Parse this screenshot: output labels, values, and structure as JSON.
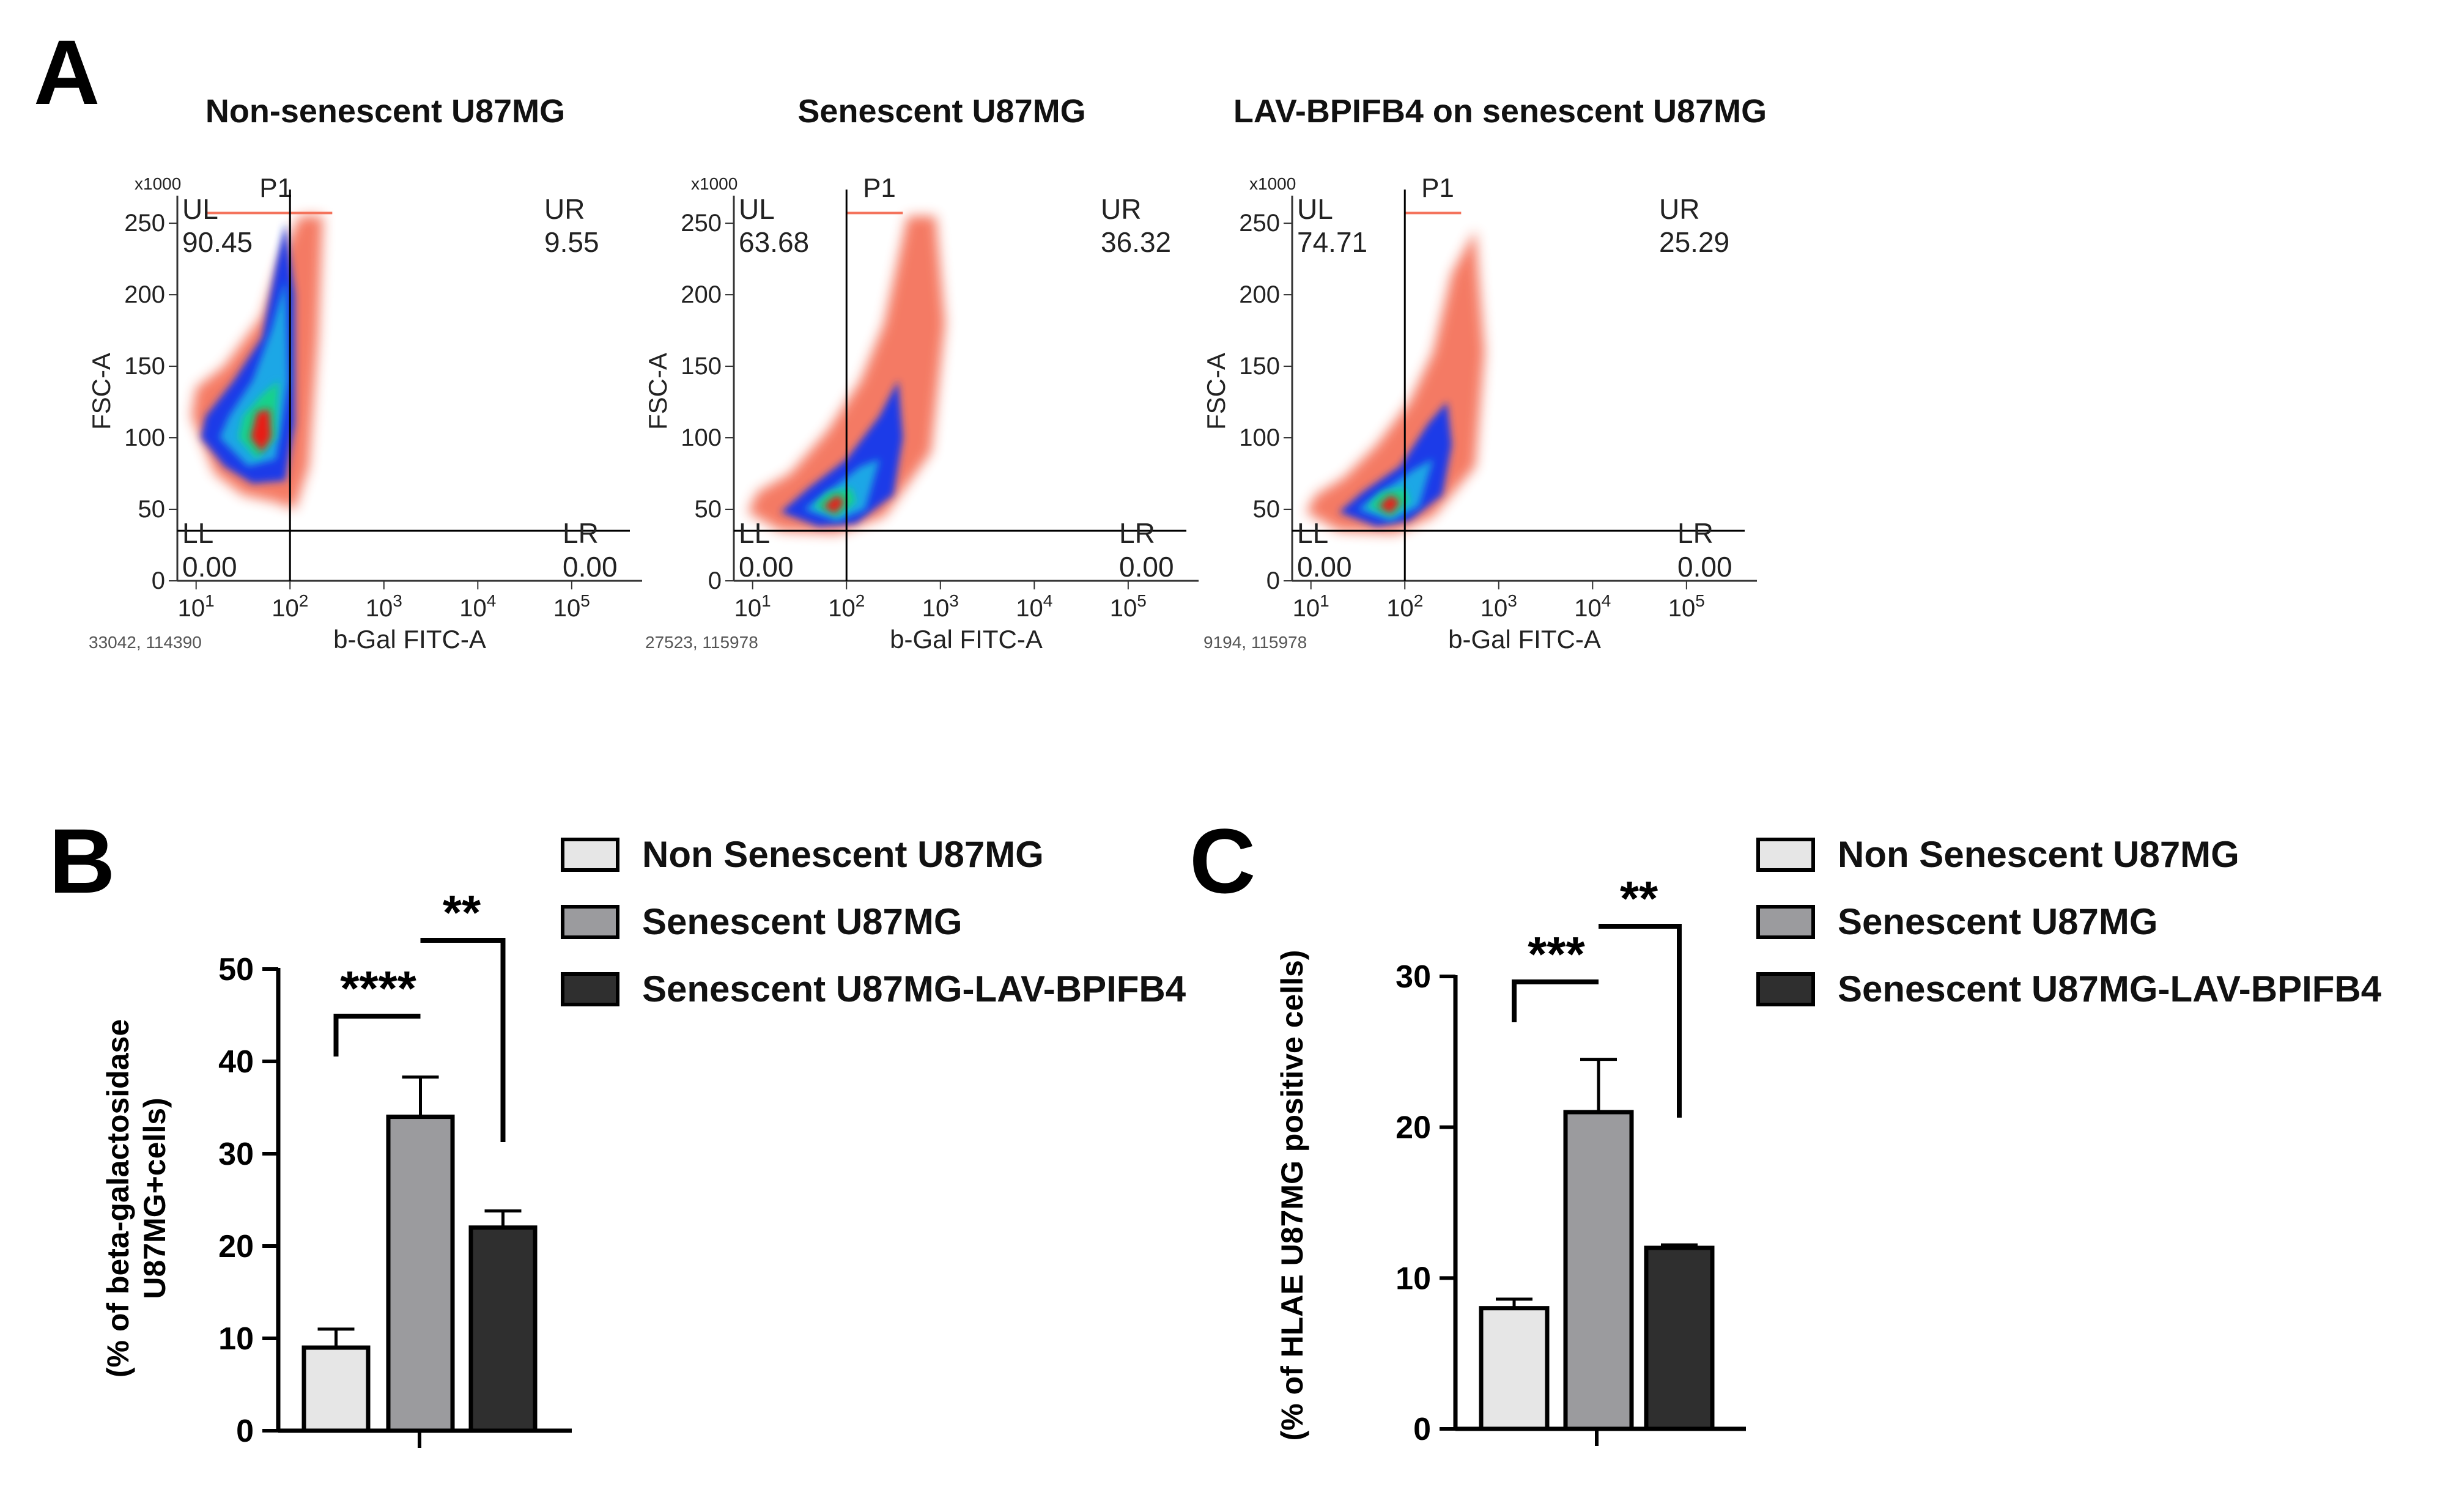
{
  "panel_letters": {
    "a": "A",
    "b": "B",
    "c": "C"
  },
  "colors": {
    "non_senescent": "#e6e6e6",
    "senescent": "#9b9b9e",
    "lav_bpifb4": "#2f2f2f",
    "density_low": "#f4735c",
    "density_mid1": "#1f3ae8",
    "density_mid2": "#1aa7e6",
    "density_mid3": "#13d28a",
    "density_high": "#e81e16"
  },
  "flow": {
    "y_multiplier": "x1000",
    "y_ticks": [
      "0",
      "50",
      "100",
      "150",
      "200",
      "250"
    ],
    "x_ticks": [
      "10",
      "10",
      "10",
      "10",
      "10"
    ],
    "x_exponents": [
      "1",
      "2",
      "3",
      "4",
      "5"
    ],
    "x_label": "b-Gal FITC-A",
    "y_label": "FSC-A",
    "gate_label": "P1",
    "quadrant_labels": {
      "ul": "UL",
      "ur": "UR",
      "ll": "LL",
      "lr": "LR"
    },
    "plots": [
      {
        "title": "Non-senescent U87MG",
        "ul": "90.45",
        "ur": "9.55",
        "ll": "0.00",
        "lr": "0.00",
        "footer": "33042, 114390"
      },
      {
        "title": "Senescent U87MG",
        "ul": "63.68",
        "ur": "36.32",
        "ll": "0.00",
        "lr": "0.00",
        "footer": "27523, 115978"
      },
      {
        "title": "LAV-BPIFB4 on senescent U87MG",
        "ul": "74.71",
        "ur": "25.29",
        "ll": "0.00",
        "lr": "0.00",
        "footer": "9194, 115978"
      }
    ]
  },
  "legend": [
    "Non Senescent U87MG",
    "Senescent U87MG",
    "Senescent U87MG-LAV-BPIFB4"
  ],
  "chart_data": [
    {
      "type": "bar",
      "panel": "B",
      "categories": [
        "Non Senescent U87MG",
        "Senescent U87MG",
        "Senescent U87MG-LAV-BPIFB4"
      ],
      "values": [
        9,
        34,
        22
      ],
      "errors": [
        2,
        4.3,
        1.8
      ],
      "ylabel_line1": "(% of  beta-galactosidase",
      "ylabel_line2": "U87MG+cells)",
      "ylim": [
        0,
        50
      ],
      "yticks": [
        0,
        10,
        20,
        30,
        40,
        50
      ],
      "significance": [
        {
          "from": 0,
          "to": 1,
          "label": "****"
        },
        {
          "from": 1,
          "to": 2,
          "label": "**"
        }
      ]
    },
    {
      "type": "bar",
      "panel": "C",
      "categories": [
        "Non Senescent U87MG",
        "Senescent U87MG",
        "Senescent U87MG-LAV-BPIFB4"
      ],
      "values": [
        8,
        21,
        12
      ],
      "errors": [
        0.6,
        3.5,
        0.2
      ],
      "ylabel_line1": "(% of HLAE U87MG positive cells)",
      "ylim": [
        0,
        30
      ],
      "yticks": [
        0,
        10,
        20,
        30
      ],
      "significance": [
        {
          "from": 0,
          "to": 1,
          "label": "***"
        },
        {
          "from": 1,
          "to": 2,
          "label": "**"
        }
      ]
    }
  ]
}
